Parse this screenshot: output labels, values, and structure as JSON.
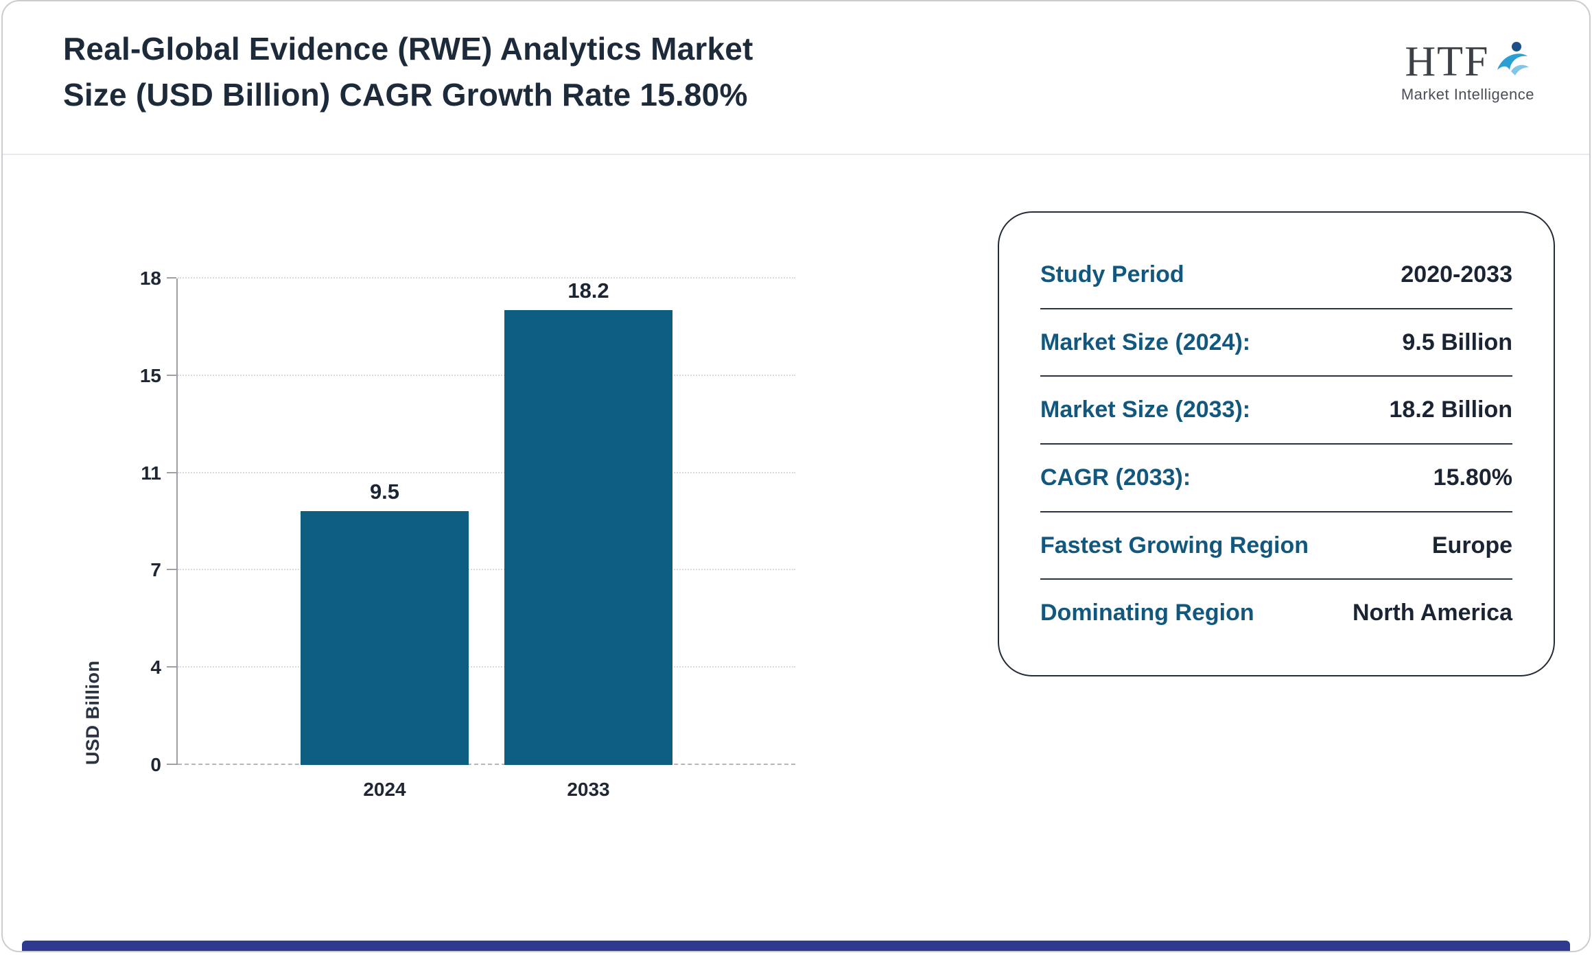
{
  "header": {
    "title_line1": "Real-Global Evidence (RWE) Analytics Market",
    "title_line2": "Size (USD Billion) CAGR Growth Rate 15.80%",
    "logo_text": "HTF",
    "logo_subtext": "Market Intelligence"
  },
  "chart_data": {
    "type": "bar",
    "title": "Real-Global Evidence (RWE) Analytics Market Size (USD Billion) CAGR Growth Rate 15.80%",
    "categories": [
      "2024",
      "2033"
    ],
    "values": [
      9.5,
      18.2
    ],
    "value_labels": [
      "9.5",
      "18.2"
    ],
    "xlabel": "",
    "ylabel": "USD Billion",
    "ytick_labels": [
      "0",
      "4",
      "7",
      "11",
      "15",
      "18"
    ],
    "ylim": [
      0,
      18.2
    ],
    "bar_color": "#0d5e80",
    "grid": "horizontal-dotted",
    "legend": "none"
  },
  "panel": {
    "rows": [
      {
        "label": "Study Period",
        "value": "2020-2033"
      },
      {
        "label": "Market Size (2024):",
        "value": "9.5 Billion"
      },
      {
        "label": "Market Size (2033):",
        "value": "18.2 Billion"
      },
      {
        "label": "CAGR (2033):",
        "value": "15.80%"
      },
      {
        "label": "Fastest Growing Region",
        "value": "Europe"
      },
      {
        "label": "Dominating Region",
        "value": "North America"
      }
    ]
  },
  "colors": {
    "bar": "#0d5e80",
    "panel_label": "#12587e",
    "dark_text": "#1a2433",
    "footer_strip": "#2d3a8e",
    "logo_accent_light": "#2a9fd6",
    "logo_accent_dark": "#1b4f8a"
  }
}
